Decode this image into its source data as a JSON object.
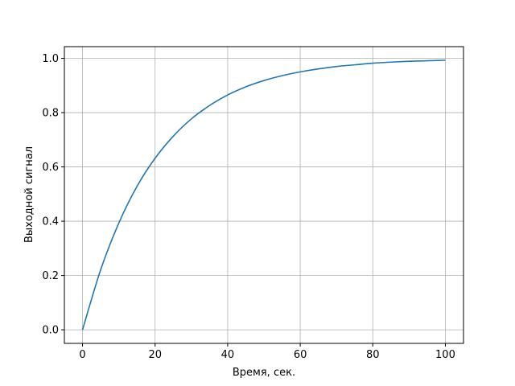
{
  "chart_data": {
    "type": "line",
    "title": "",
    "xlabel": "Время, сек.",
    "ylabel": "Выходной сигнал",
    "xlim": [
      -5,
      105
    ],
    "ylim": [
      -0.05,
      1.043
    ],
    "grid": true,
    "xticks": [
      0,
      20,
      40,
      60,
      80,
      100
    ],
    "xtick_labels": [
      "0",
      "20",
      "40",
      "60",
      "80",
      "100"
    ],
    "yticks": [
      0.0,
      0.2,
      0.4,
      0.6,
      0.8,
      1.0
    ],
    "ytick_labels": [
      "0.0",
      "0.2",
      "0.4",
      "0.6",
      "0.8",
      "1.0"
    ],
    "series": [
      {
        "color": "#1f77b4",
        "x": [
          0,
          5,
          10,
          15,
          20,
          25,
          30,
          35,
          40,
          45,
          50,
          55,
          60,
          65,
          70,
          75,
          80,
          85,
          90,
          95,
          100
        ],
        "y": [
          0,
          0.221,
          0.393,
          0.528,
          0.632,
          0.713,
          0.777,
          0.826,
          0.865,
          0.895,
          0.918,
          0.936,
          0.95,
          0.961,
          0.97,
          0.976,
          0.982,
          0.986,
          0.989,
          0.991,
          0.993
        ]
      }
    ]
  }
}
